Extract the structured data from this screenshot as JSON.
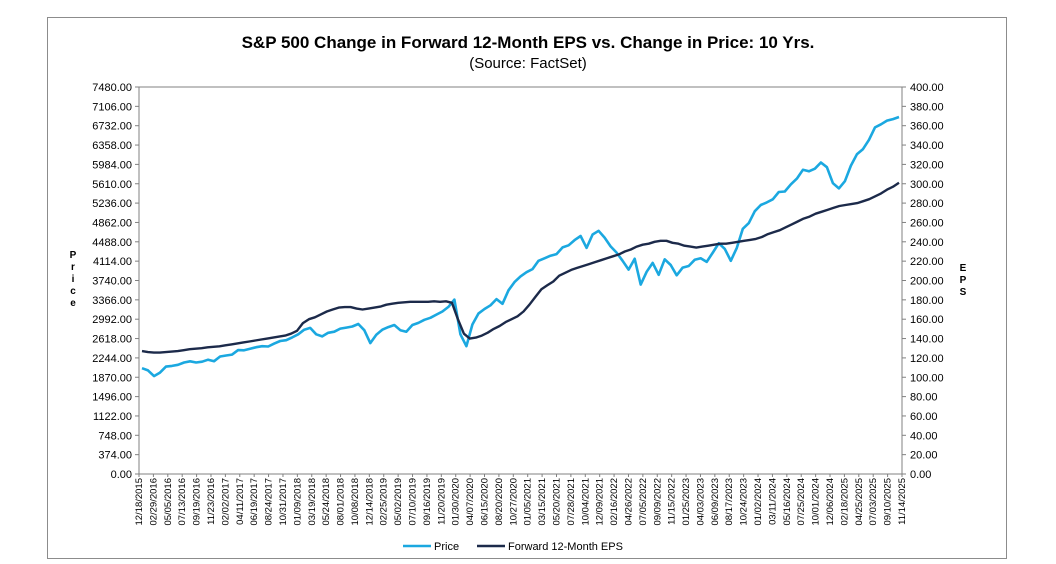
{
  "chart_data": {
    "type": "line",
    "title": "S&P 500 Change in Forward 12-Month EPS vs. Change in Price: 10 Yrs.",
    "subtitle": "(Source: FactSet)",
    "ylabel_left": "Price",
    "ylabel_right": "EPS",
    "ylim_left": [
      0,
      7480
    ],
    "ylim_right": [
      0,
      400
    ],
    "y_left_ticks": [
      "0.00",
      "374.00",
      "748.00",
      "1122.00",
      "1496.00",
      "1870.00",
      "2244.00",
      "2618.00",
      "2992.00",
      "3366.00",
      "3740.00",
      "4114.00",
      "4488.00",
      "4862.00",
      "5236.00",
      "5610.00",
      "5984.00",
      "6358.00",
      "6732.00",
      "7106.00",
      "7480.00"
    ],
    "y_right_ticks": [
      "0.00",
      "20.00",
      "40.00",
      "60.00",
      "80.00",
      "100.00",
      "120.00",
      "140.00",
      "160.00",
      "180.00",
      "200.00",
      "220.00",
      "240.00",
      "260.00",
      "280.00",
      "300.00",
      "320.00",
      "340.00",
      "360.00",
      "380.00",
      "400.00"
    ],
    "x_ticks": [
      "12/18/2015",
      "02/29/2016",
      "05/05/2016",
      "07/13/2016",
      "09/19/2016",
      "11/23/2016",
      "02/02/2017",
      "04/11/2017",
      "06/19/2017",
      "08/24/2017",
      "10/31/2017",
      "01/09/2018",
      "03/19/2018",
      "05/24/2018",
      "08/01/2018",
      "10/08/2018",
      "12/14/2018",
      "02/25/2019",
      "05/02/2019",
      "07/10/2019",
      "09/16/2019",
      "11/20/2019",
      "01/30/2020",
      "04/07/2020",
      "06/15/2020",
      "08/20/2020",
      "10/27/2020",
      "01/05/2021",
      "03/15/2021",
      "05/20/2021",
      "07/28/2021",
      "10/04/2021",
      "12/09/2021",
      "02/16/2022",
      "04/26/2022",
      "07/05/2022",
      "09/09/2022",
      "11/15/2022",
      "01/25/2023",
      "04/03/2023",
      "06/09/2023",
      "08/17/2023",
      "10/24/2023",
      "01/02/2024",
      "03/11/2024",
      "05/16/2024",
      "07/25/2024",
      "10/01/2024",
      "12/06/2024",
      "02/18/2025",
      "04/25/2025",
      "07/03/2025",
      "09/10/2025",
      "11/14/2025"
    ],
    "series": [
      {
        "name": "Price",
        "color": "#1ba8e0",
        "axis": "left",
        "values": [
          2044,
          2003,
          1893,
          1960,
          2075,
          2090,
          2111,
          2155,
          2178,
          2155,
          2170,
          2210,
          2180,
          2272,
          2290,
          2308,
          2395,
          2390,
          2420,
          2450,
          2470,
          2465,
          2520,
          2570,
          2587,
          2640,
          2700,
          2790,
          2823,
          2700,
          2660,
          2730,
          2750,
          2810,
          2830,
          2850,
          2900,
          2780,
          2530,
          2690,
          2790,
          2840,
          2880,
          2780,
          2750,
          2880,
          2920,
          2980,
          3020,
          3080,
          3140,
          3230,
          3370,
          2700,
          2470,
          2890,
          3100,
          3190,
          3260,
          3380,
          3290,
          3550,
          3710,
          3820,
          3900,
          3960,
          4120,
          4170,
          4220,
          4250,
          4380,
          4420,
          4520,
          4600,
          4370,
          4630,
          4700,
          4570,
          4400,
          4280,
          4120,
          3950,
          4160,
          3660,
          3910,
          4080,
          3850,
          4150,
          4040,
          3840,
          3990,
          4020,
          4140,
          4170,
          4100,
          4280,
          4460,
          4350,
          4120,
          4370,
          4740,
          4850,
          5080,
          5200,
          5250,
          5310,
          5450,
          5460,
          5600,
          5710,
          5880,
          5850,
          5900,
          6020,
          5930,
          5620,
          5520,
          5660,
          5960,
          6180,
          6280,
          6460,
          6700,
          6760,
          6830,
          6860,
          6900
        ]
      },
      {
        "name": "Forward 12-Month EPS",
        "color": "#1c2a4a",
        "axis": "right",
        "values": [
          127,
          126,
          125.5,
          125.5,
          126,
          126.5,
          127,
          128,
          129,
          129.5,
          130,
          131,
          131.5,
          132,
          133,
          134,
          135,
          136,
          137,
          138,
          139,
          140,
          141,
          142,
          143,
          145,
          148,
          156,
          160,
          162,
          165,
          168,
          170,
          172,
          172.5,
          172.5,
          171,
          170,
          171,
          172,
          173,
          175,
          176,
          177,
          177.5,
          178,
          178,
          178,
          178,
          178.5,
          178,
          178.5,
          177,
          160,
          145,
          140,
          141,
          143,
          146,
          150,
          153,
          157,
          160,
          163,
          168,
          175,
          183,
          191,
          195,
          199,
          205,
          208,
          211,
          213,
          215,
          217,
          219,
          221,
          223,
          225,
          227,
          230,
          232,
          235,
          237,
          238,
          240,
          241,
          241,
          239,
          238,
          236,
          235,
          234,
          235,
          236,
          237,
          238,
          238,
          239,
          240,
          241,
          242,
          243,
          245,
          248,
          250,
          252,
          255,
          258,
          261,
          264,
          266,
          269,
          271,
          273,
          275,
          277,
          278,
          279,
          280,
          282,
          284,
          287,
          290,
          294,
          297,
          301
        ]
      }
    ],
    "legend": [
      "Price",
      "Forward 12-Month EPS"
    ],
    "legend_position": "bottom-center"
  }
}
